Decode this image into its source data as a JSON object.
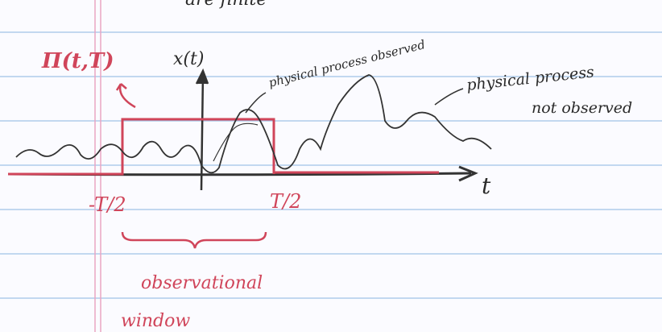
{
  "header": {
    "text": "are finite"
  },
  "labels": {
    "rect_function": "Π(t,T)",
    "signal": "x(t)",
    "observed": "physical process observed",
    "not_observed_1": "physical process",
    "not_observed_2": "not observed",
    "neg_half": "-T/2",
    "pos_half": "T/2",
    "t_axis": "t",
    "window_1": "observational",
    "window_2": "window"
  }
}
